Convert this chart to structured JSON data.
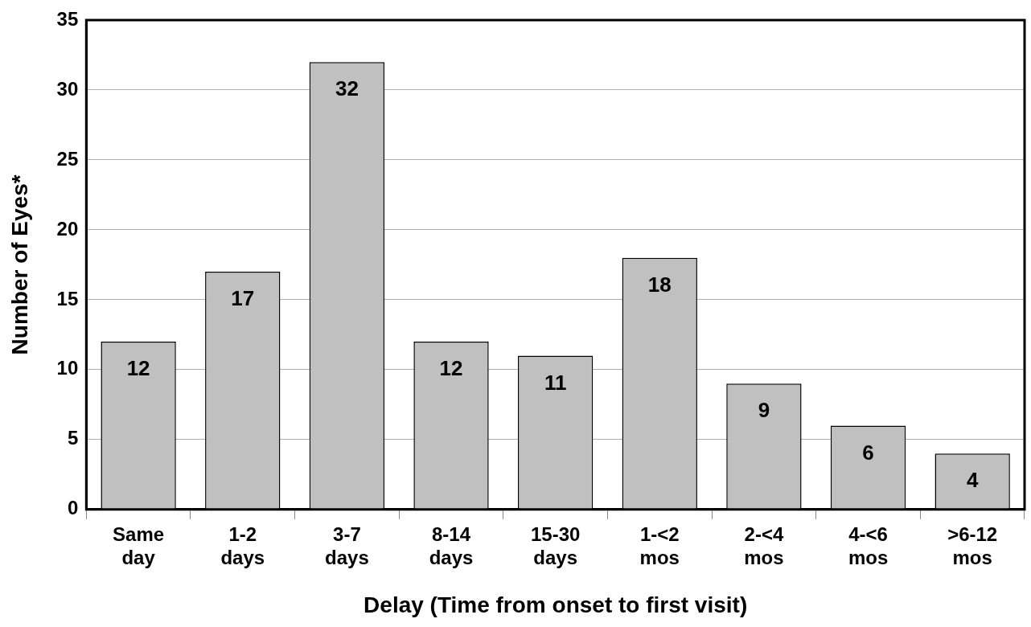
{
  "chart_data": {
    "type": "bar",
    "xlabel": "Delay (Time from onset to first visit)",
    "ylabel": "Number of Eyes*",
    "categories": [
      "Same day",
      "1-2 days",
      "3-7 days",
      "8-14 days",
      "15-30 days",
      "1-<2 mos",
      "2-<4 mos",
      "4-<6 mos",
      ">6-12 mos"
    ],
    "values": [
      12,
      17,
      32,
      12,
      11,
      18,
      9,
      6,
      4
    ],
    "color": "#c0c0c0",
    "ylim": [
      0,
      35
    ],
    "yticks": [
      0,
      5,
      10,
      15,
      20,
      25,
      30,
      35
    ],
    "grid": "y",
    "data_labels": true
  }
}
